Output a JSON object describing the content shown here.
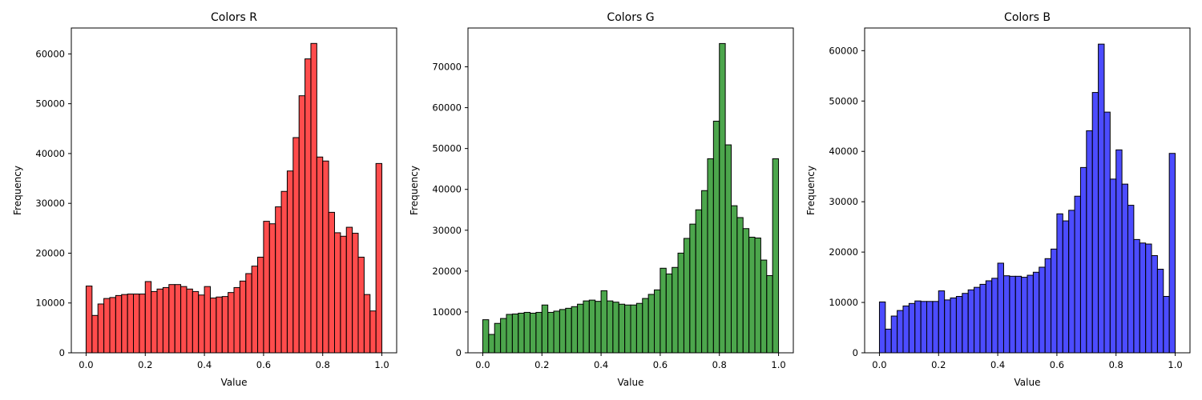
{
  "chart_data": [
    {
      "type": "bar",
      "title": "Colors R",
      "xlabel": "Value",
      "ylabel": "Frequency",
      "color": "#ff0000",
      "opacity": 0.7,
      "bins": 50,
      "xlim": [
        -0.05,
        1.05
      ],
      "ylim": [
        0,
        65200
      ],
      "xticks": [
        0.0,
        0.2,
        0.4,
        0.6,
        0.8,
        1.0
      ],
      "xtick_labels": [
        "0.0",
        "0.2",
        "0.4",
        "0.6",
        "0.8",
        "1.0"
      ],
      "yticks": [
        0,
        10000,
        20000,
        30000,
        40000,
        50000,
        60000
      ],
      "ytick_labels": [
        "0",
        "10000",
        "20000",
        "30000",
        "40000",
        "50000",
        "60000"
      ],
      "values": [
        13400,
        7500,
        9800,
        10900,
        11100,
        11500,
        11700,
        11800,
        11800,
        11800,
        14300,
        12300,
        12800,
        13100,
        13700,
        13700,
        13300,
        12800,
        12300,
        11600,
        13300,
        11000,
        11200,
        11300,
        12100,
        13100,
        14400,
        15900,
        17400,
        19200,
        26400,
        25900,
        29300,
        32400,
        36500,
        43200,
        51600,
        59000,
        62100,
        39300,
        38500,
        28200,
        24100,
        23400,
        25200,
        24000,
        19200,
        11700,
        8400,
        38000
      ]
    },
    {
      "type": "bar",
      "title": "Colors G",
      "xlabel": "Value",
      "ylabel": "Frequency",
      "color": "#008000",
      "opacity": 0.7,
      "bins": 50,
      "xlim": [
        -0.05,
        1.05
      ],
      "ylim": [
        0,
        79500
      ],
      "xticks": [
        0.0,
        0.2,
        0.4,
        0.6,
        0.8,
        1.0
      ],
      "xtick_labels": [
        "0.0",
        "0.2",
        "0.4",
        "0.6",
        "0.8",
        "1.0"
      ],
      "yticks": [
        0,
        10000,
        20000,
        30000,
        40000,
        50000,
        60000,
        70000
      ],
      "ytick_labels": [
        "0",
        "10000",
        "20000",
        "30000",
        "40000",
        "50000",
        "60000",
        "70000"
      ],
      "values": [
        8100,
        4500,
        7200,
        8400,
        9400,
        9500,
        9700,
        9900,
        9700,
        9900,
        11700,
        9900,
        10200,
        10600,
        10900,
        11300,
        11900,
        12700,
        12900,
        12600,
        15200,
        12700,
        12400,
        11900,
        11700,
        11700,
        12100,
        13300,
        14300,
        15400,
        20700,
        19300,
        20900,
        24400,
        28000,
        31500,
        35000,
        39700,
        47500,
        56700,
        75700,
        50900,
        36000,
        33100,
        30400,
        28300,
        28100,
        22700,
        18900,
        47500
      ]
    },
    {
      "type": "bar",
      "title": "Colors B",
      "xlabel": "Value",
      "ylabel": "Frequency",
      "color": "#0000ff",
      "opacity": 0.7,
      "bins": 50,
      "xlim": [
        -0.05,
        1.05
      ],
      "ylim": [
        0,
        64500
      ],
      "xticks": [
        0.0,
        0.2,
        0.4,
        0.6,
        0.8,
        1.0
      ],
      "xtick_labels": [
        "0.0",
        "0.2",
        "0.4",
        "0.6",
        "0.8",
        "1.0"
      ],
      "yticks": [
        0,
        10000,
        20000,
        30000,
        40000,
        50000,
        60000
      ],
      "ytick_labels": [
        "0",
        "10000",
        "20000",
        "30000",
        "40000",
        "50000",
        "60000"
      ],
      "values": [
        10100,
        4700,
        7300,
        8400,
        9300,
        9800,
        10300,
        10200,
        10200,
        10200,
        12300,
        10500,
        10900,
        11200,
        11800,
        12500,
        13000,
        13600,
        14300,
        14800,
        17800,
        15300,
        15200,
        15200,
        15000,
        15400,
        16000,
        17000,
        18700,
        20600,
        27600,
        26200,
        28300,
        31100,
        36800,
        44100,
        51700,
        61300,
        47800,
        34500,
        40300,
        33500,
        29300,
        22500,
        21800,
        21600,
        19300,
        16600,
        11200,
        39600
      ]
    }
  ]
}
